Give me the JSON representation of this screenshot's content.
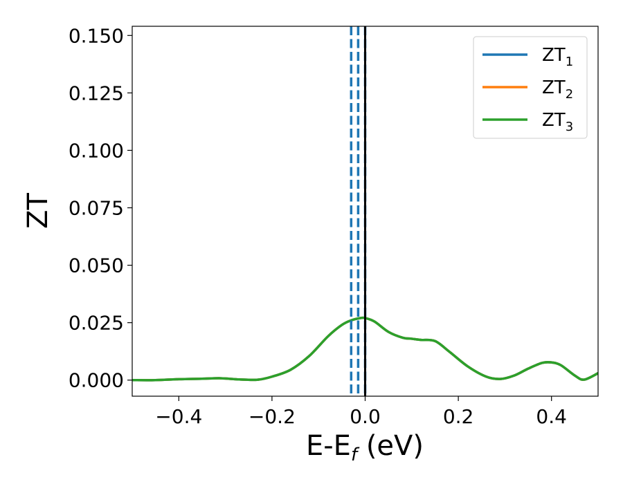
{
  "chart_data": {
    "type": "line",
    "xlabel": {
      "main": "E-E",
      "sub": "f",
      "suffix": " (eV)"
    },
    "ylabel": "ZT",
    "xlim": [
      -0.5,
      0.5
    ],
    "ylim": [
      -0.007,
      0.154
    ],
    "xticks": [
      -0.4,
      -0.2,
      0.0,
      0.2,
      0.4
    ],
    "xtick_labels": [
      "−0.4",
      "−0.2",
      "0.0",
      "0.2",
      "0.4"
    ],
    "yticks": [
      0.0,
      0.025,
      0.05,
      0.075,
      0.1,
      0.125,
      0.15
    ],
    "ytick_labels": [
      "0.000",
      "0.025",
      "0.050",
      "0.075",
      "0.100",
      "0.125",
      "0.150"
    ],
    "grid": false,
    "legend_position": "top-right",
    "series": [
      {
        "name": "ZT",
        "sub": "1",
        "color": "#1f77b4",
        "x": [
          -0.5,
          -0.45,
          -0.4,
          -0.35,
          -0.31,
          -0.27,
          -0.23,
          -0.2,
          -0.16,
          -0.12,
          -0.08,
          -0.05,
          -0.03,
          -0.01,
          0.0,
          0.02,
          0.05,
          0.08,
          0.1,
          0.12,
          0.15,
          0.18,
          0.22,
          0.26,
          0.29,
          0.32,
          0.35,
          0.38,
          0.4,
          0.42,
          0.45,
          0.47,
          0.5
        ],
        "y": [
          0.0,
          0.0,
          0.0004,
          0.0006,
          0.0008,
          0.0003,
          0.0002,
          0.0015,
          0.0045,
          0.0105,
          0.019,
          0.024,
          0.026,
          0.027,
          0.027,
          0.0255,
          0.021,
          0.0185,
          0.018,
          0.0175,
          0.017,
          0.0125,
          0.006,
          0.0015,
          0.0005,
          0.002,
          0.005,
          0.0075,
          0.0077,
          0.0065,
          0.002,
          0.0002,
          0.003
        ]
      },
      {
        "name": "ZT",
        "sub": "2",
        "color": "#ff7f0e",
        "x": [
          -0.5,
          -0.45,
          -0.4,
          -0.35,
          -0.31,
          -0.27,
          -0.23,
          -0.2,
          -0.16,
          -0.12,
          -0.08,
          -0.05,
          -0.03,
          -0.01,
          0.0,
          0.02,
          0.05,
          0.08,
          0.1,
          0.12,
          0.15,
          0.18,
          0.22,
          0.26,
          0.29,
          0.32,
          0.35,
          0.38,
          0.4,
          0.42,
          0.45,
          0.47,
          0.5
        ],
        "y": [
          0.0,
          0.0,
          0.0004,
          0.0006,
          0.0008,
          0.0003,
          0.0002,
          0.0015,
          0.0045,
          0.0105,
          0.019,
          0.024,
          0.026,
          0.027,
          0.027,
          0.0255,
          0.021,
          0.0185,
          0.018,
          0.0175,
          0.017,
          0.0125,
          0.006,
          0.0015,
          0.0005,
          0.002,
          0.005,
          0.0075,
          0.0077,
          0.0065,
          0.002,
          0.0002,
          0.003
        ]
      },
      {
        "name": "ZT",
        "sub": "3",
        "color": "#2ca02c",
        "x": [
          -0.5,
          -0.45,
          -0.4,
          -0.35,
          -0.31,
          -0.27,
          -0.23,
          -0.2,
          -0.16,
          -0.12,
          -0.08,
          -0.05,
          -0.03,
          -0.01,
          0.0,
          0.02,
          0.05,
          0.08,
          0.1,
          0.12,
          0.15,
          0.18,
          0.22,
          0.26,
          0.29,
          0.32,
          0.35,
          0.38,
          0.4,
          0.42,
          0.45,
          0.47,
          0.5
        ],
        "y": [
          0.0,
          0.0,
          0.0004,
          0.0006,
          0.0008,
          0.0003,
          0.0002,
          0.0015,
          0.0045,
          0.0105,
          0.019,
          0.024,
          0.026,
          0.027,
          0.027,
          0.0255,
          0.021,
          0.0185,
          0.018,
          0.0175,
          0.017,
          0.0125,
          0.006,
          0.0015,
          0.0005,
          0.002,
          0.005,
          0.0075,
          0.0077,
          0.0065,
          0.002,
          0.0002,
          0.003
        ]
      }
    ],
    "vlines": [
      {
        "x": -0.03,
        "style": "dashed",
        "color": "#1f77b4"
      },
      {
        "x": -0.015,
        "style": "dashed",
        "color": "#1f77b4"
      },
      {
        "x": 0.0,
        "style": "dashed",
        "color": "#1f77b4"
      },
      {
        "x": 0.0,
        "style": "solid",
        "color": "#000000"
      }
    ]
  }
}
